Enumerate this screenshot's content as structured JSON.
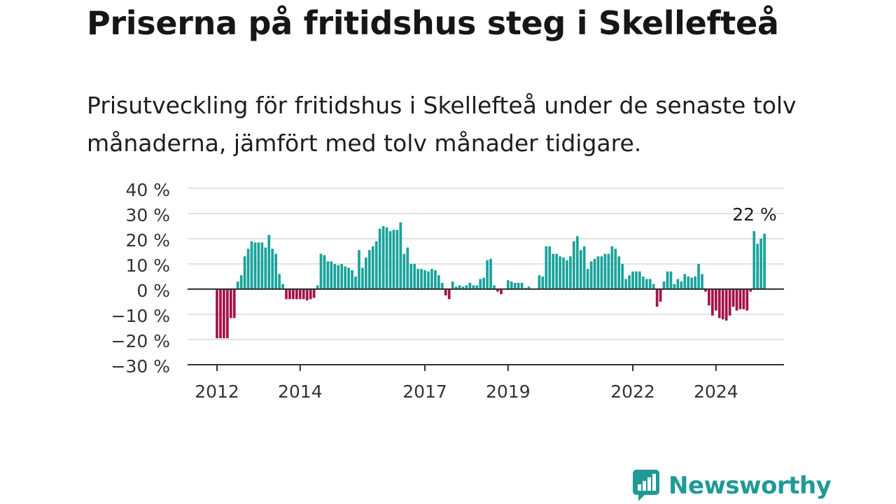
{
  "header": {
    "title": "Priserna på fritidshus steg i Skellefteå",
    "subtitle": "Prisutveckling för fritidshus i Skellefteå under de senaste tolv månaderna, jämfört med tolv månader tidigare."
  },
  "brand": {
    "name": "Newsworthy",
    "icon": "newsworthy-logo-icon"
  },
  "colors": {
    "positive": "#1aa39b",
    "negative": "#a3134a",
    "grid": "#d9d9d9",
    "axis": "#333333"
  },
  "chart_data": {
    "type": "bar",
    "title": "Priserna på fritidshus steg i Skellefteå",
    "ylabel": "",
    "xlabel": "",
    "ylim": [
      -30,
      40
    ],
    "yticks": [
      40,
      30,
      20,
      10,
      0,
      -10,
      -20,
      -30
    ],
    "ytick_labels": [
      "40 %",
      "30 %",
      "20 %",
      "10 %",
      "0 %",
      "−10 %",
      "−20 %",
      "−30 %"
    ],
    "xticks": [
      {
        "label": "2012",
        "index": 0
      },
      {
        "label": "2014",
        "index": 24
      },
      {
        "label": "2017",
        "index": 60
      },
      {
        "label": "2019",
        "index": 84
      },
      {
        "label": "2022",
        "index": 120
      },
      {
        "label": "2024",
        "index": 144
      }
    ],
    "first_bar_index": 0,
    "values": [
      -19.5,
      -19.5,
      -19.5,
      -19.5,
      -11.5,
      -11.5,
      3,
      5.5,
      13,
      16,
      19,
      18.5,
      18.5,
      18.5,
      16.5,
      21.5,
      16,
      14,
      6,
      2,
      -4,
      -4,
      -4,
      -4,
      -4,
      -4,
      -4.5,
      -4,
      -3.5,
      1.5,
      14,
      13.5,
      11,
      11,
      10,
      9.5,
      10,
      9,
      8.5,
      7.5,
      5,
      15.5,
      8.5,
      12.5,
      15.5,
      17,
      19,
      24,
      25,
      24.5,
      23,
      23.5,
      23.5,
      26.5,
      14,
      16.5,
      10,
      10,
      8,
      8,
      7.5,
      7,
      8,
      7.5,
      5.5,
      2.5,
      -2.5,
      -4,
      3,
      1,
      1.5,
      1,
      1.5,
      2.5,
      1.5,
      1.5,
      4,
      4.5,
      11.5,
      12,
      1.5,
      -1,
      -2,
      0,
      3.5,
      3,
      2.5,
      2.5,
      2.5,
      0.5,
      1,
      0,
      0,
      5.5,
      5,
      17,
      17,
      14,
      14,
      13,
      12.5,
      11.5,
      13,
      19,
      21,
      15.5,
      17,
      8,
      11,
      12,
      13,
      13,
      14,
      14,
      17,
      16,
      13,
      10,
      4,
      5.5,
      7,
      7,
      7,
      5,
      4,
      4,
      2,
      -7,
      -5,
      3,
      7,
      7,
      2,
      4,
      3,
      6,
      5,
      4.5,
      5,
      10,
      6,
      -1,
      -6.5,
      -10.5,
      -8.5,
      -11.5,
      -12,
      -12.5,
      -10.5,
      -7,
      -8.5,
      -8,
      -8,
      -8.5,
      -1,
      23,
      18,
      20,
      22
    ],
    "annotation": {
      "label": "22 %",
      "index": 160
    }
  }
}
